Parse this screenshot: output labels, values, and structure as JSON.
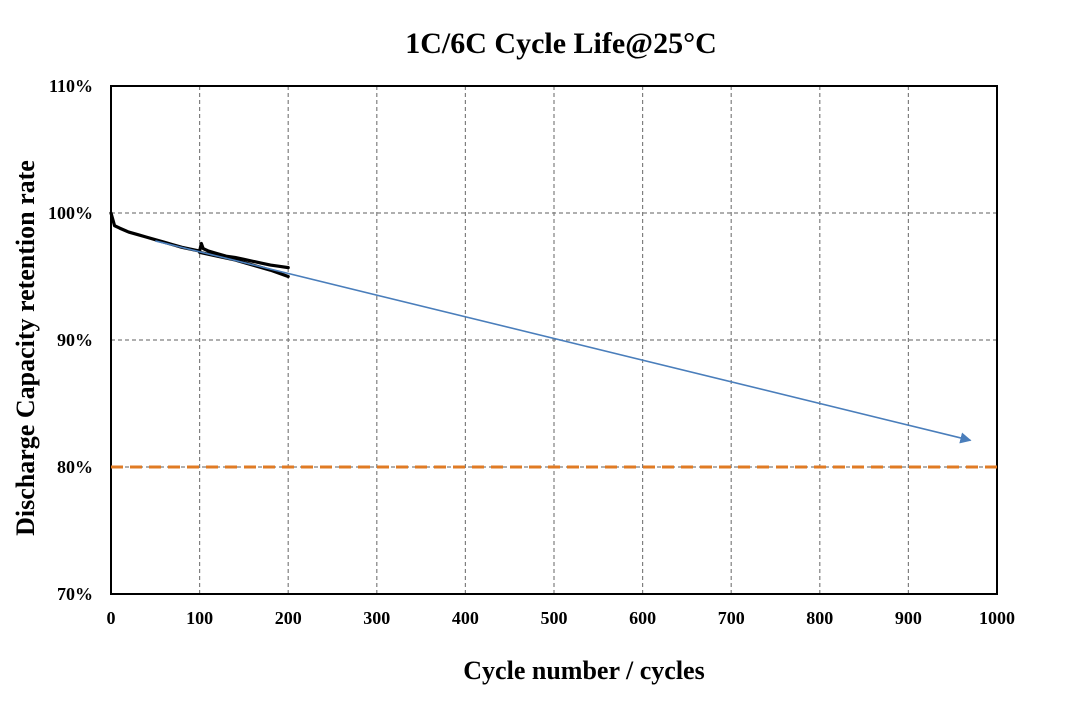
{
  "chart_data": {
    "type": "line",
    "title": "1C/6C Cycle Life@25°C",
    "xlabel": "Cycle number / cycles",
    "ylabel": "Discharge Capacity  retention rate",
    "xlim": [
      0,
      1000
    ],
    "ylim": [
      70,
      110
    ],
    "x_ticks": [
      "0",
      "100",
      "200",
      "300",
      "400",
      "500",
      "600",
      "700",
      "800",
      "900",
      "1000"
    ],
    "y_ticks": [
      "70%",
      "80%",
      "90%",
      "100%",
      "110%"
    ],
    "grid": true,
    "series": [
      {
        "role": "measured-upper",
        "color": "#000000",
        "x": [
          0,
          2,
          4,
          10,
          20,
          30,
          40,
          50,
          60,
          70,
          80,
          90,
          100,
          102,
          104,
          110,
          120,
          130,
          140,
          150,
          160,
          170,
          180,
          190,
          200
        ],
        "y": [
          100.0,
          99.5,
          99.0,
          98.8,
          98.5,
          98.3,
          98.1,
          97.9,
          97.7,
          97.5,
          97.3,
          97.15,
          97.0,
          97.6,
          97.2,
          97.0,
          96.8,
          96.6,
          96.5,
          96.35,
          96.2,
          96.05,
          95.9,
          95.8,
          95.7
        ]
      },
      {
        "role": "measured-lower",
        "color": "#000000",
        "x": [
          100,
          120,
          140,
          160,
          180,
          200
        ],
        "y": [
          96.9,
          96.6,
          96.3,
          95.9,
          95.5,
          95.0
        ]
      },
      {
        "role": "trend-arrow",
        "color": "#4a7ebb",
        "x": [
          50,
          970
        ],
        "y": [
          97.8,
          82.1
        ]
      },
      {
        "role": "threshold",
        "color": "#e07b24",
        "x": [
          0,
          1000
        ],
        "y": [
          80,
          80
        ]
      }
    ]
  }
}
